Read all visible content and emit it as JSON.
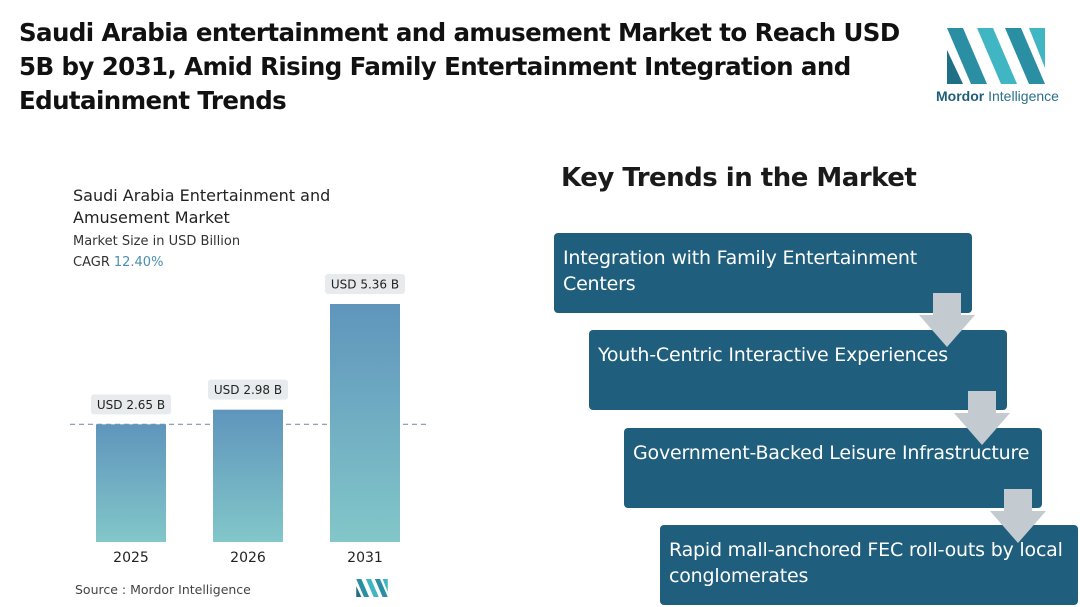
{
  "headline": "Saudi Arabia entertainment and amusement Market to Reach USD 5B by 2031, Amid Rising Family Entertainment Integration and Edutainment Trends",
  "logo": {
    "brand_bold": "Mordor",
    "brand_rest": " Intelligence"
  },
  "chart_header": {
    "title": "Saudi Arabia Entertainment and Amusement Market",
    "subtitle": "Market Size in USD Billion",
    "cagr_label": "CAGR",
    "cagr_value": "12.40%"
  },
  "chart_data": {
    "type": "bar",
    "categories": [
      "2025",
      "2026",
      "2031"
    ],
    "values": [
      2.65,
      2.98,
      5.36
    ],
    "data_labels": [
      "USD 2.65 B",
      "USD 2.98 B",
      "USD 5.36 B"
    ],
    "title": "Saudi Arabia Entertainment and Amusement Market",
    "ylabel": "Market Size in USD Billion",
    "xlabel": "",
    "ylim": [
      0,
      5.36
    ],
    "reference_line_value": 2.65,
    "colors": {
      "bar_top": "#5f95bc",
      "bar_bottom": "#82c7c9",
      "label_bg": "#e8ebee",
      "ref_line": "#7f97a8"
    }
  },
  "source": "Source :  Mordor Intelligence",
  "trends": {
    "title": "Key Trends in the Market",
    "items": [
      {
        "label": "Integration with Family Entertainment Centers"
      },
      {
        "label": "Youth-Centric Interactive Experiences"
      },
      {
        "label": "Government-Backed Leisure Infrastructure"
      },
      {
        "label": "Rapid mall-anchored FEC roll-outs by local conglomerates"
      }
    ],
    "colors": {
      "box": "#1f5e7c",
      "arrow": "#c3cad0"
    }
  }
}
